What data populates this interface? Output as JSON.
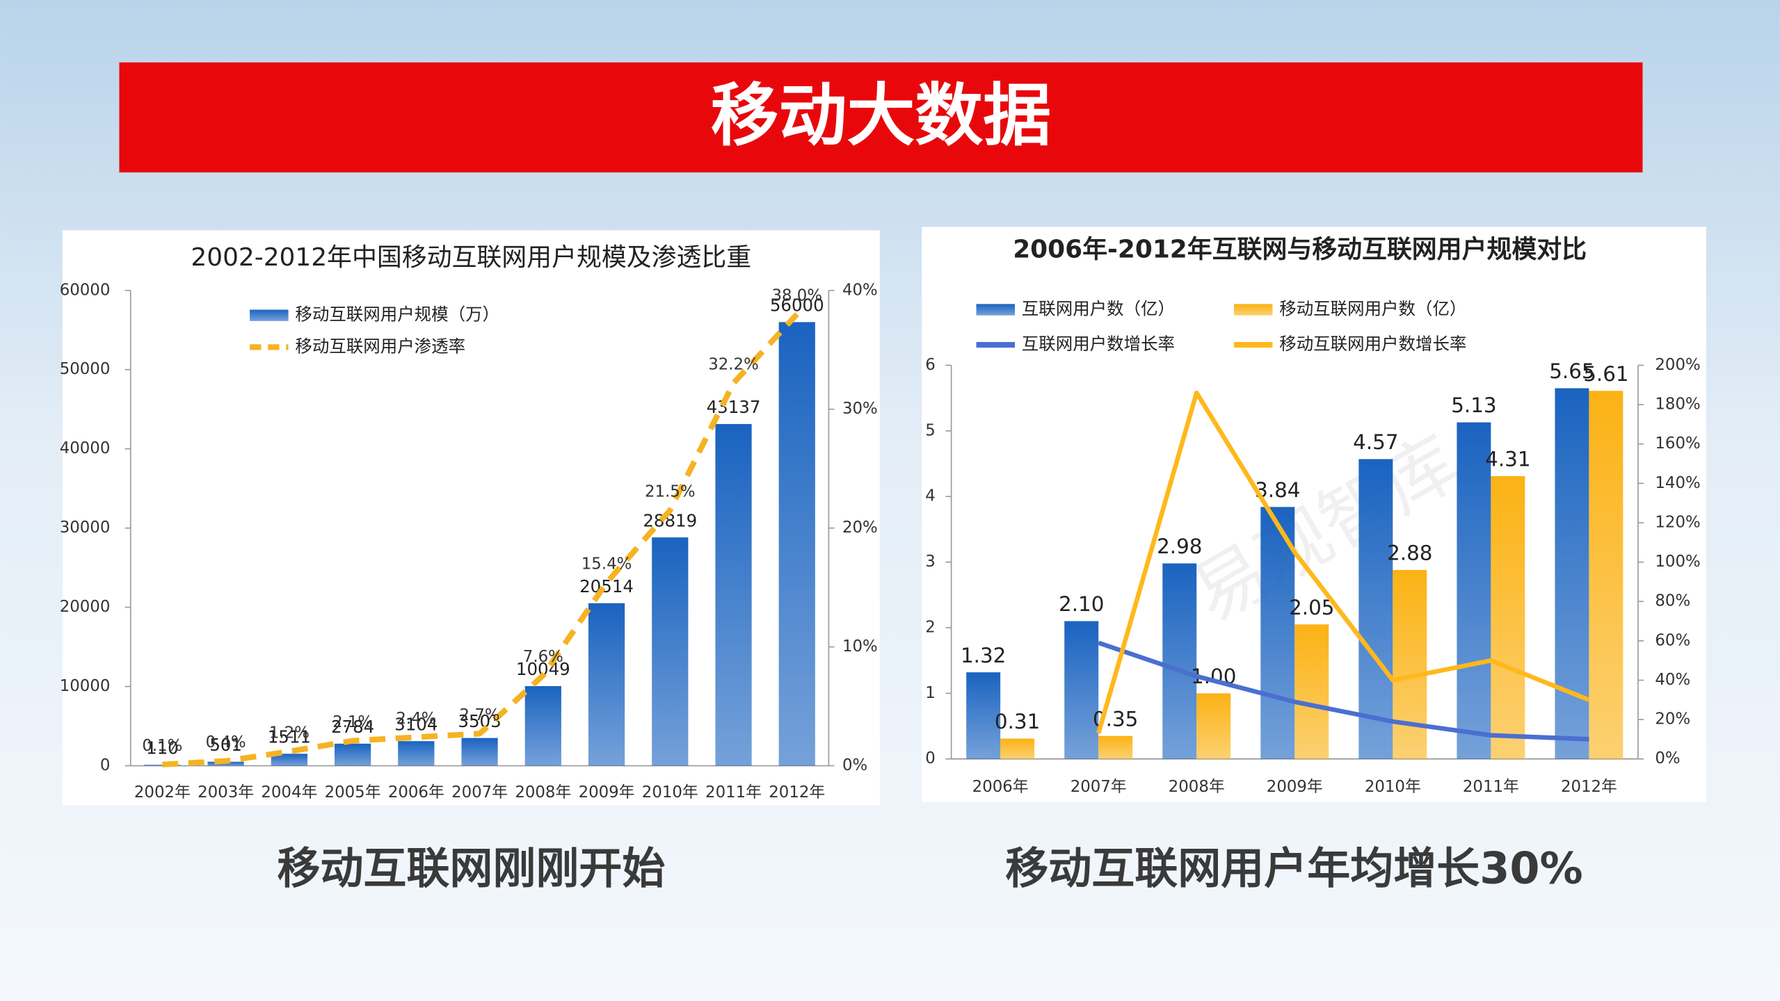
{
  "header": {
    "title": "移动大数据"
  },
  "captions": [
    "移动互联网刚刚开始",
    "移动互联网用户年均增长30%"
  ],
  "chart_data": [
    {
      "type": "bar",
      "title": "2002-2012年中国移动互联网用户规模及渗透比重",
      "categories": [
        "2002年",
        "2003年",
        "2004年",
        "2005年",
        "2006年",
        "2007年",
        "2008年",
        "2009年",
        "2010年",
        "2011年",
        "2012年"
      ],
      "series": [
        {
          "name": "移动互联网用户规模（万）",
          "type": "bar",
          "color": "#1a63c0",
          "values": [
            110,
            501,
            1511,
            2784,
            3104,
            3503,
            10049,
            20514,
            28819,
            43137,
            56000
          ]
        },
        {
          "name": "移动互联网用户渗透率",
          "type": "line",
          "axis": "y2",
          "dash": true,
          "color": "#f5b323",
          "values": [
            0.1,
            0.4,
            1.2,
            2.1,
            2.4,
            2.7,
            7.6,
            15.4,
            21.5,
            32.2,
            38.0
          ],
          "value_labels": [
            "0.1%",
            "0.4%",
            "1.2%",
            "2.1%",
            "2.4%",
            "2.7%",
            "7.6%",
            "15.4%",
            "21.5%",
            "32.2%",
            "38.0%"
          ]
        }
      ],
      "ylim": [
        0,
        60000
      ],
      "yticks": [
        0,
        10000,
        20000,
        30000,
        40000,
        50000,
        60000
      ],
      "y2lim": [
        0,
        40
      ],
      "y2ticks": [
        {
          "value": 0,
          "label": "0%"
        },
        {
          "value": 10,
          "label": "10%"
        },
        {
          "value": 20,
          "label": "20%"
        },
        {
          "value": 30,
          "label": "30%"
        },
        {
          "value": 40,
          "label": "40%"
        }
      ]
    },
    {
      "type": "bar",
      "title": "2006年-2012年互联网与移动互联网用户规模对比",
      "categories": [
        "2006年",
        "2007年",
        "2008年",
        "2009年",
        "2010年",
        "2011年",
        "2012年"
      ],
      "series": [
        {
          "name": "互联网用户数（亿）",
          "type": "bar",
          "color": "#1a63c0",
          "values": [
            1.32,
            2.1,
            2.98,
            3.84,
            4.57,
            5.13,
            5.65
          ],
          "value_labels": [
            "1.32",
            "2.10",
            "2.98",
            "3.84",
            "4.57",
            "5.13",
            "5.65"
          ]
        },
        {
          "name": "移动互联网用户数（亿）",
          "type": "bar",
          "color": "#fbb214",
          "values": [
            0.31,
            0.35,
            1.0,
            2.05,
            2.88,
            4.31,
            5.61
          ],
          "value_labels": [
            "0.31",
            "0.35",
            "1.00",
            "2.05",
            "2.88",
            "4.31",
            "5.61"
          ]
        },
        {
          "name": "互联网用户数增长率",
          "type": "line",
          "axis": "y2",
          "color": "#4a6fd0",
          "values": [
            null,
            59,
            42,
            29,
            19,
            12,
            10
          ]
        },
        {
          "name": "移动互联网用户数增长率",
          "type": "line",
          "axis": "y2",
          "color": "#ffb81c",
          "values": [
            null,
            13,
            186,
            105,
            40,
            50,
            30
          ]
        }
      ],
      "ylim": [
        0,
        6
      ],
      "yticks": [
        0,
        1,
        2,
        3,
        4,
        5,
        6
      ],
      "y2lim": [
        0,
        200
      ],
      "y2ticks": [
        {
          "value": 0,
          "label": "0%"
        },
        {
          "value": 20,
          "label": "20%"
        },
        {
          "value": 40,
          "label": "40%"
        },
        {
          "value": 60,
          "label": "60%"
        },
        {
          "value": 80,
          "label": "80%"
        },
        {
          "value": 100,
          "label": "100%"
        },
        {
          "value": 120,
          "label": "120%"
        },
        {
          "value": 140,
          "label": "140%"
        },
        {
          "value": 160,
          "label": "160%"
        },
        {
          "value": 180,
          "label": "180%"
        },
        {
          "value": 200,
          "label": "200%"
        }
      ],
      "watermark": "易观智库"
    }
  ]
}
